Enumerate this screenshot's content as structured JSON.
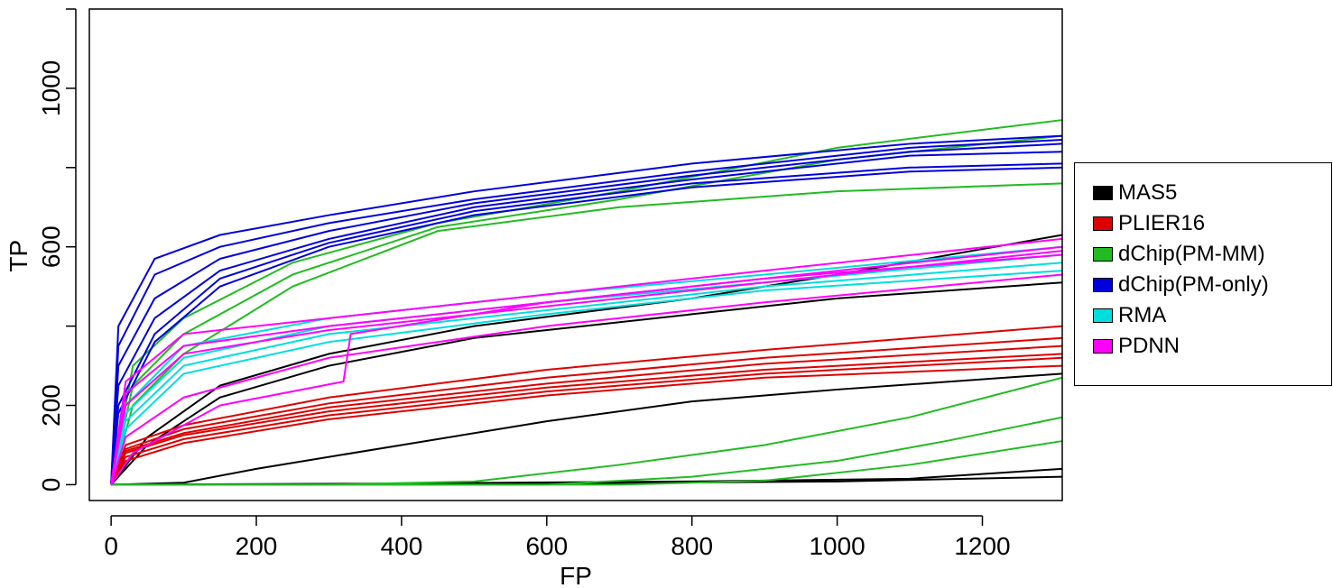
{
  "chart_data": {
    "type": "line",
    "title": "",
    "xlabel": "FP",
    "ylabel": "TP",
    "xlim": [
      -30,
      1310
    ],
    "ylim": [
      -40,
      1200
    ],
    "xticks": [
      0,
      200,
      400,
      600,
      800,
      1000,
      1200
    ],
    "yticks": [
      0,
      200,
      600,
      1000
    ],
    "ytick_marks": [
      0,
      200,
      400,
      600,
      800,
      1000,
      1200
    ],
    "grid": false,
    "legend_position": "right",
    "series": [
      {
        "name": "MAS5",
        "color": "#000000",
        "lines": [
          [
            [
              0,
              0
            ],
            [
              50,
              120
            ],
            [
              150,
              250
            ],
            [
              300,
              330
            ],
            [
              500,
              400
            ],
            [
              800,
              470
            ],
            [
              1000,
              530
            ],
            [
              1310,
              630
            ]
          ],
          [
            [
              0,
              0
            ],
            [
              50,
              100
            ],
            [
              150,
              220
            ],
            [
              300,
              300
            ],
            [
              500,
              370
            ],
            [
              800,
              430
            ],
            [
              1000,
              470
            ],
            [
              1310,
              510
            ]
          ],
          [
            [
              0,
              0
            ],
            [
              100,
              5
            ],
            [
              200,
              40
            ],
            [
              400,
              100
            ],
            [
              600,
              160
            ],
            [
              800,
              210
            ],
            [
              1000,
              240
            ],
            [
              1310,
              280
            ]
          ],
          [
            [
              0,
              0
            ],
            [
              400,
              3
            ],
            [
              800,
              8
            ],
            [
              1100,
              15
            ],
            [
              1310,
              40
            ]
          ],
          [
            [
              0,
              0
            ],
            [
              500,
              2
            ],
            [
              1000,
              8
            ],
            [
              1310,
              20
            ]
          ]
        ]
      },
      {
        "name": "PLIER16",
        "color": "#dd0000",
        "lines": [
          [
            [
              0,
              0
            ],
            [
              20,
              100
            ],
            [
              100,
              150
            ],
            [
              300,
              220
            ],
            [
              600,
              290
            ],
            [
              900,
              340
            ],
            [
              1310,
              400
            ]
          ],
          [
            [
              0,
              0
            ],
            [
              20,
              90
            ],
            [
              100,
              140
            ],
            [
              300,
              205
            ],
            [
              600,
              270
            ],
            [
              900,
              320
            ],
            [
              1310,
              370
            ]
          ],
          [
            [
              0,
              0
            ],
            [
              20,
              85
            ],
            [
              100,
              130
            ],
            [
              300,
              195
            ],
            [
              600,
              255
            ],
            [
              900,
              305
            ],
            [
              1310,
              350
            ]
          ],
          [
            [
              0,
              0
            ],
            [
              20,
              80
            ],
            [
              100,
              125
            ],
            [
              300,
              185
            ],
            [
              600,
              245
            ],
            [
              900,
              290
            ],
            [
              1310,
              330
            ]
          ],
          [
            [
              0,
              0
            ],
            [
              20,
              70
            ],
            [
              100,
              115
            ],
            [
              300,
              175
            ],
            [
              600,
              235
            ],
            [
              900,
              280
            ],
            [
              1310,
              320
            ]
          ],
          [
            [
              0,
              0
            ],
            [
              20,
              60
            ],
            [
              100,
              105
            ],
            [
              300,
              165
            ],
            [
              600,
              225
            ],
            [
              900,
              270
            ],
            [
              1310,
              300
            ]
          ]
        ]
      },
      {
        "name": "dChip(PM-MM)",
        "color": "#22bb22",
        "lines": [
          [
            [
              0,
              0
            ],
            [
              30,
              300
            ],
            [
              100,
              420
            ],
            [
              250,
              560
            ],
            [
              450,
              660
            ],
            [
              700,
              740
            ],
            [
              1000,
              850
            ],
            [
              1310,
              920
            ]
          ],
          [
            [
              0,
              0
            ],
            [
              30,
              250
            ],
            [
              100,
              380
            ],
            [
              250,
              530
            ],
            [
              450,
              650
            ],
            [
              700,
              720
            ],
            [
              1000,
              820
            ],
            [
              1310,
              880
            ]
          ],
          [
            [
              0,
              0
            ],
            [
              30,
              200
            ],
            [
              100,
              330
            ],
            [
              250,
              500
            ],
            [
              450,
              640
            ],
            [
              700,
              700
            ],
            [
              1000,
              740
            ],
            [
              1310,
              760
            ]
          ],
          [
            [
              0,
              0
            ],
            [
              300,
              0
            ],
            [
              500,
              8
            ],
            [
              700,
              50
            ],
            [
              900,
              100
            ],
            [
              1100,
              170
            ],
            [
              1310,
              270
            ]
          ],
          [
            [
              0,
              0
            ],
            [
              600,
              0
            ],
            [
              800,
              20
            ],
            [
              1000,
              60
            ],
            [
              1150,
              110
            ],
            [
              1310,
              170
            ]
          ],
          [
            [
              0,
              0
            ],
            [
              700,
              0
            ],
            [
              900,
              10
            ],
            [
              1100,
              50
            ],
            [
              1310,
              110
            ]
          ]
        ]
      },
      {
        "name": "dChip(PM-only)",
        "color": "#0000dd",
        "lines": [
          [
            [
              0,
              0
            ],
            [
              10,
              400
            ],
            [
              60,
              570
            ],
            [
              150,
              630
            ],
            [
              300,
              680
            ],
            [
              500,
              740
            ],
            [
              800,
              810
            ],
            [
              1100,
              860
            ],
            [
              1310,
              880
            ]
          ],
          [
            [
              0,
              0
            ],
            [
              10,
              350
            ],
            [
              60,
              530
            ],
            [
              150,
              600
            ],
            [
              300,
              660
            ],
            [
              500,
              720
            ],
            [
              800,
              790
            ],
            [
              1100,
              850
            ],
            [
              1310,
              870
            ]
          ],
          [
            [
              0,
              0
            ],
            [
              10,
              300
            ],
            [
              60,
              470
            ],
            [
              150,
              570
            ],
            [
              300,
              640
            ],
            [
              500,
              710
            ],
            [
              800,
              780
            ],
            [
              1100,
              840
            ],
            [
              1310,
              860
            ]
          ],
          [
            [
              0,
              0
            ],
            [
              10,
              250
            ],
            [
              60,
              420
            ],
            [
              150,
              540
            ],
            [
              300,
              620
            ],
            [
              500,
              700
            ],
            [
              800,
              770
            ],
            [
              1100,
              830
            ],
            [
              1310,
              840
            ]
          ],
          [
            [
              0,
              0
            ],
            [
              10,
              200
            ],
            [
              60,
              380
            ],
            [
              150,
              520
            ],
            [
              300,
              610
            ],
            [
              500,
              690
            ],
            [
              800,
              760
            ],
            [
              1100,
              800
            ],
            [
              1310,
              810
            ]
          ],
          [
            [
              0,
              0
            ],
            [
              10,
              180
            ],
            [
              60,
              360
            ],
            [
              150,
              500
            ],
            [
              300,
              600
            ],
            [
              500,
              680
            ],
            [
              800,
              750
            ],
            [
              1100,
              790
            ],
            [
              1310,
              800
            ]
          ]
        ]
      },
      {
        "name": "RMA",
        "color": "#00dddd",
        "lines": [
          [
            [
              0,
              0
            ],
            [
              20,
              200
            ],
            [
              100,
              350
            ],
            [
              300,
              420
            ],
            [
              600,
              480
            ],
            [
              900,
              530
            ],
            [
              1310,
              600
            ]
          ],
          [
            [
              0,
              0
            ],
            [
              20,
              180
            ],
            [
              100,
              320
            ],
            [
              300,
              400
            ],
            [
              600,
              460
            ],
            [
              900,
              510
            ],
            [
              1310,
              580
            ]
          ],
          [
            [
              0,
              0
            ],
            [
              20,
              160
            ],
            [
              100,
              300
            ],
            [
              300,
              380
            ],
            [
              600,
              440
            ],
            [
              900,
              500
            ],
            [
              1310,
              560
            ]
          ],
          [
            [
              0,
              0
            ],
            [
              20,
              140
            ],
            [
              100,
              280
            ],
            [
              300,
              360
            ],
            [
              600,
              430
            ],
            [
              900,
              490
            ],
            [
              1310,
              540
            ]
          ]
        ]
      },
      {
        "name": "PDNN",
        "color": "#ff00ff",
        "lines": [
          [
            [
              0,
              0
            ],
            [
              20,
              260
            ],
            [
              100,
              380
            ],
            [
              300,
              420
            ],
            [
              600,
              480
            ],
            [
              900,
              540
            ],
            [
              1310,
              620
            ]
          ],
          [
            [
              0,
              0
            ],
            [
              20,
              230
            ],
            [
              100,
              350
            ],
            [
              300,
              400
            ],
            [
              600,
              460
            ],
            [
              900,
              520
            ],
            [
              1310,
              600
            ]
          ],
          [
            [
              0,
              0
            ],
            [
              20,
              200
            ],
            [
              100,
              330
            ],
            [
              300,
              390
            ],
            [
              600,
              450
            ],
            [
              900,
              510
            ],
            [
              1310,
              590
            ]
          ],
          [
            [
              0,
              0
            ],
            [
              30,
              80
            ],
            [
              150,
              200
            ],
            [
              320,
              260
            ],
            [
              330,
              380
            ],
            [
              600,
              460
            ],
            [
              900,
              520
            ],
            [
              1310,
              580
            ]
          ],
          [
            [
              0,
              0
            ],
            [
              20,
              120
            ],
            [
              100,
              220
            ],
            [
              300,
              320
            ],
            [
              600,
              400
            ],
            [
              900,
              460
            ],
            [
              1310,
              530
            ]
          ]
        ]
      }
    ]
  }
}
